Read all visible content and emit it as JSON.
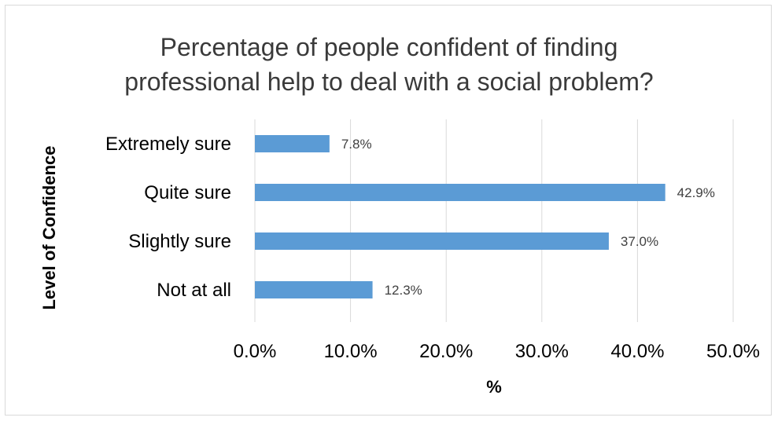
{
  "chart_data": {
    "type": "bar",
    "orientation": "horizontal",
    "title": "Percentage of people confident of finding\nprofessional help to deal with a social problem?",
    "xlabel": "%",
    "ylabel": "Level of Confidence",
    "categories": [
      "Extremely sure",
      "Quite sure",
      "Slightly sure",
      "Not at all"
    ],
    "values": [
      7.8,
      42.9,
      37.0,
      12.3
    ],
    "data_labels": [
      "7.8%",
      "42.9%",
      "37.0%",
      "12.3%"
    ],
    "xlim": [
      0,
      50
    ],
    "xticks": [
      0,
      10,
      20,
      30,
      40,
      50
    ],
    "xtick_labels": [
      "0.0%",
      "10.0%",
      "20.0%",
      "30.0%",
      "40.0%",
      "50.0%"
    ],
    "grid": true,
    "legend": "none",
    "bar_color": "#5b9bd5",
    "grid_color": "#d9d9d9"
  }
}
